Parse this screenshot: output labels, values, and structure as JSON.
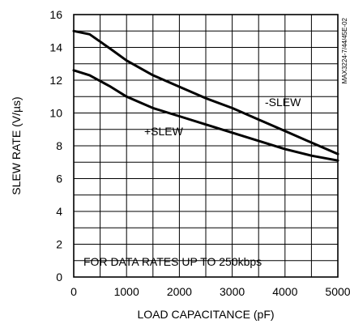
{
  "chart_data": {
    "type": "line",
    "xlabel": "LOAD CAPACITANCE (pF)",
    "ylabel": "SLEW RATE (V/µs)",
    "xlim": [
      0,
      5000
    ],
    "ylim": [
      0,
      16
    ],
    "x_ticks": [
      0,
      1000,
      2000,
      3000,
      4000,
      5000
    ],
    "y_ticks": [
      0,
      2,
      4,
      6,
      8,
      10,
      12,
      14,
      16
    ],
    "x_tick_labels": [
      "0",
      "1000",
      "2000",
      "3000",
      "4000",
      "5000"
    ],
    "y_tick_labels": [
      "0",
      "2",
      "4",
      "6",
      "8",
      "10",
      "12",
      "14",
      "16"
    ],
    "grid": true,
    "series": [
      {
        "name": "-SLEW",
        "x": [
          0,
          300,
          700,
          1000,
          1500,
          2000,
          2500,
          3000,
          3500,
          4000,
          4500,
          5000
        ],
        "y": [
          15.0,
          14.8,
          13.9,
          13.2,
          12.3,
          11.6,
          10.9,
          10.3,
          9.6,
          8.9,
          8.2,
          7.5
        ]
      },
      {
        "name": "+SLEW",
        "x": [
          0,
          300,
          700,
          1000,
          1500,
          2000,
          2500,
          3000,
          3500,
          4000,
          4500,
          5000
        ],
        "y": [
          12.6,
          12.3,
          11.6,
          11.0,
          10.3,
          9.8,
          9.3,
          8.8,
          8.3,
          7.8,
          7.4,
          7.1
        ]
      }
    ],
    "annotations": {
      "data_rates": "FOR DATA RATES UP TO 250kbps",
      "code": "MAX3224-7/44/45E-02"
    }
  }
}
